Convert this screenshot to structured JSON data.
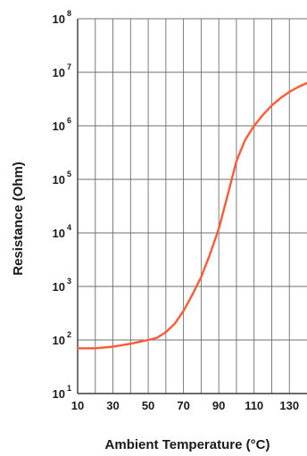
{
  "chart_data": {
    "type": "line",
    "xlabel": "Ambient Temperature (°C)",
    "ylabel": "Resistance (Ohm)",
    "x_ticks": [
      10,
      30,
      50,
      70,
      90,
      110,
      130
    ],
    "y_ticks": [
      {
        "base": "10",
        "exp": "1"
      },
      {
        "base": "10",
        "exp": "2"
      },
      {
        "base": "10",
        "exp": "3"
      },
      {
        "base": "10",
        "exp": "4"
      },
      {
        "base": "10",
        "exp": "5"
      },
      {
        "base": "10",
        "exp": "6"
      },
      {
        "base": "10",
        "exp": "7"
      },
      {
        "base": "10",
        "exp": "8"
      }
    ],
    "xlim": [
      10,
      140
    ],
    "ylim": [
      10,
      100000000
    ],
    "y_scale": "log",
    "grid": true,
    "series": [
      {
        "color": "#ff5a36",
        "x": [
          10,
          20,
          30,
          40,
          50,
          55,
          60,
          65,
          70,
          75,
          80,
          85,
          90,
          95,
          100,
          105,
          110,
          115,
          120,
          125,
          130,
          135,
          140
        ],
        "y": [
          70,
          70,
          75,
          85,
          100,
          110,
          140,
          200,
          350,
          700,
          1500,
          4000,
          12000,
          50000,
          220000,
          550000,
          1000000,
          1600000,
          2400000,
          3300000,
          4300000,
          5300000,
          6300000
        ]
      }
    ]
  }
}
